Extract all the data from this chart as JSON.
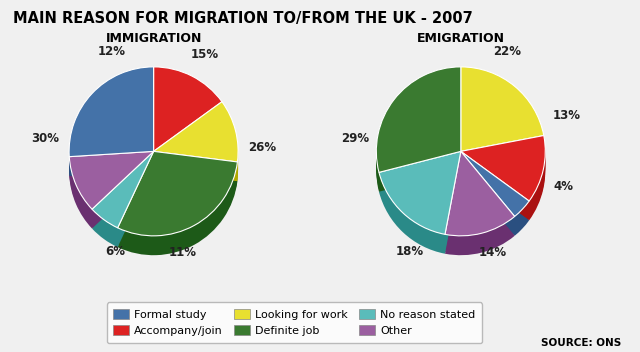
{
  "title": "MAIN REASON FOR MIGRATION TO/FROM THE UK - 2007",
  "immigration_label": "IMMIGRATION",
  "emigration_label": "EMIGRATION",
  "source": "SOURCE: ONS",
  "categories": [
    "Formal study",
    "Accompany/join",
    "Looking for work",
    "Definite job",
    "No reason stated",
    "Other"
  ],
  "colors": [
    "#4472a8",
    "#dd2222",
    "#e8e030",
    "#3a7a30",
    "#5abcba",
    "#9b5fa0"
  ],
  "shadow_colors": [
    "#2a4f80",
    "#aa1111",
    "#b0a800",
    "#1d5a18",
    "#2a8a88",
    "#6a3070"
  ],
  "imm_order": [
    1,
    2,
    3,
    4,
    5,
    0
  ],
  "em_order": [
    2,
    1,
    0,
    5,
    4,
    3
  ],
  "immigration_values": [
    26,
    15,
    12,
    30,
    6,
    11
  ],
  "emigration_values": [
    4,
    13,
    22,
    29,
    18,
    14
  ],
  "immigration_pct_labels": [
    "26%",
    "15%",
    "12%",
    "30%",
    "6%",
    "11%"
  ],
  "emigration_pct_labels": [
    "4%",
    "13%",
    "22%",
    "29%",
    "18%",
    "14%"
  ],
  "background_color": "#f0f0f0",
  "legend_bg": "#ffffff"
}
